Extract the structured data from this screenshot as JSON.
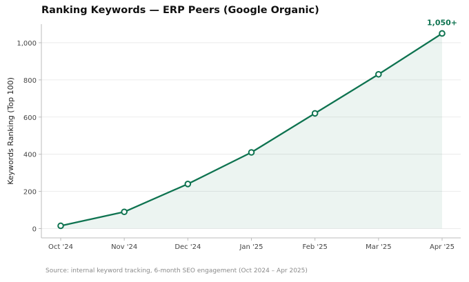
{
  "chart_data": {
    "type": "line",
    "title": "Ranking Keywords — ERP Peers (Google Organic)",
    "xlabel": "",
    "ylabel": "Keywords Ranking (Top 100)",
    "categories": [
      "Oct '24",
      "Nov '24",
      "Dec '24",
      "Jan '25",
      "Feb '25",
      "Mar '25",
      "Apr '25"
    ],
    "series": [
      {
        "values": [
          15,
          90,
          240,
          410,
          620,
          830,
          1050
        ]
      }
    ],
    "ylim": [
      -50,
      1100
    ],
    "yticks": [
      0,
      200,
      400,
      600,
      800,
      1000
    ],
    "ytick_labels": [
      "0",
      "200",
      "400",
      "600",
      "800",
      "1,000"
    ],
    "annotation": "1,050+",
    "grid": "horizontal",
    "colors": {
      "line": "#0e7350",
      "fill": "#0e7350",
      "grid": "#e6e6e6",
      "axis": "#bbbbbb"
    }
  },
  "source": "Source: internal keyword tracking, 6-month SEO engagement (Oct 2024 – Apr 2025)"
}
